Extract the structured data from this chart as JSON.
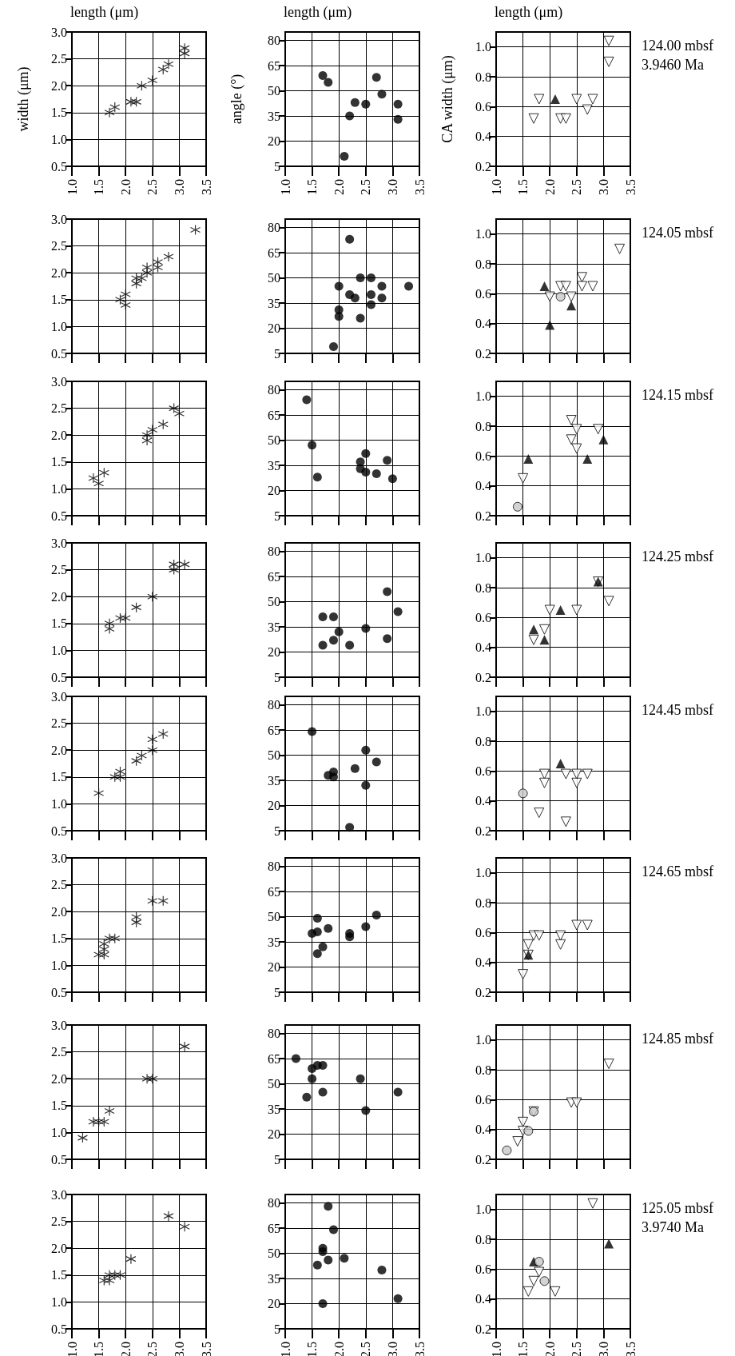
{
  "chart_data": [
    {
      "type": "scatter",
      "xlabel": "length (μm)",
      "ylabel": "width (μm)",
      "color": "#000000",
      "marker": "cross",
      "x": [
        1.7,
        1.8,
        2.1,
        2.2,
        2.3,
        2.5,
        2.7,
        2.8,
        3.1,
        3.1
      ],
      "values": [
        1.5,
        1.6,
        1.7,
        1.7,
        2.0,
        2.1,
        2.3,
        2.4,
        2.7,
        2.6
      ],
      "xlim": [
        1,
        3.5
      ],
      "xticks": [
        {
          "value": 1,
          "label": "1.0"
        },
        {
          "value": 1.5,
          "label": "1.5"
        },
        {
          "value": 2,
          "label": "2.0"
        },
        {
          "value": 2.5,
          "label": "2.5"
        },
        {
          "value": 3,
          "label": "3.0"
        },
        {
          "value": 3.5,
          "label": "3.5"
        }
      ],
      "ylim": [
        0.5,
        3
      ],
      "yticks": [
        {
          "value": 0.5,
          "label": "0.5"
        },
        {
          "value": 1,
          "label": "1.0"
        },
        {
          "value": 1.5,
          "label": "1.5"
        },
        {
          "value": 2,
          "label": "2.0"
        },
        {
          "value": 2.5,
          "label": "2.5"
        },
        {
          "value": 3,
          "label": "3.0"
        }
      ],
      "grid": true
    },
    {
      "type": "scatter",
      "xlabel": "length (μm)",
      "ylabel": "angle (°)",
      "color": "#000000",
      "marker": "circle",
      "x": [
        1.7,
        1.8,
        2.3,
        2.2,
        2.5,
        2.7,
        2.8,
        3.1,
        3.1,
        2.1
      ],
      "values": [
        59,
        55,
        43,
        35,
        42,
        58,
        48,
        42,
        33,
        11
      ],
      "xlim": [
        1,
        3.5
      ],
      "xticks": [
        {
          "value": 1,
          "label": "1.0"
        },
        {
          "value": 1.5,
          "label": "1.5"
        },
        {
          "value": 2,
          "label": "2.0"
        },
        {
          "value": 2.5,
          "label": "2.5"
        },
        {
          "value": 3,
          "label": "3.0"
        },
        {
          "value": 3.5,
          "label": "3.5"
        }
      ],
      "ylim": [
        5,
        85
      ],
      "yticks": [
        5,
        20,
        35,
        50,
        65,
        80
      ],
      "grid": true
    },
    {
      "type": "scatter",
      "xlabel": "length (μm)",
      "ylabel": "CA width (μm)",
      "annotations": [
        "124.00 mbsf",
        "3.9460 Ma"
      ],
      "series": [
        {
          "color": "#ffffff",
          "marker": "triangle-down",
          "x": [
            1.7,
            1.8,
            2.2,
            2.3,
            2.5,
            2.7,
            2.8,
            3.1,
            3.1
          ],
          "values": [
            0.52,
            0.65,
            0.52,
            0.52,
            0.65,
            0.58,
            0.65,
            1.04,
            0.9
          ]
        },
        {
          "color": "#000000",
          "marker": "triangle",
          "x": [
            2.1
          ],
          "values": [
            0.65
          ]
        }
      ],
      "xlim": [
        1,
        3.5
      ],
      "xticks": [
        {
          "value": 1,
          "label": "1.0"
        },
        {
          "value": 1.5,
          "label": "1.5"
        },
        {
          "value": 2,
          "label": "2.0"
        },
        {
          "value": 2.5,
          "label": "2.5"
        },
        {
          "value": 3,
          "label": "3.0"
        },
        {
          "value": 3.5,
          "label": "3.5"
        }
      ],
      "ylim": [
        0.2,
        1.1
      ],
      "yticks": [
        {
          "value": 0.2,
          "label": "0.2"
        },
        {
          "value": 0.4,
          "label": "0.4"
        },
        {
          "value": 0.6,
          "label": "0.6"
        },
        {
          "value": 0.8,
          "label": "0.8"
        },
        {
          "value": 1,
          "label": "1.0"
        }
      ],
      "grid": true
    },
    {
      "type": "scatter",
      "color": "#000000",
      "marker": "cross",
      "x": [
        1.9,
        2.0,
        2.0,
        2.2,
        2.2,
        2.3,
        2.4,
        2.4,
        2.6,
        2.6,
        2.8,
        3.3
      ],
      "values": [
        1.5,
        1.6,
        1.4,
        1.9,
        1.8,
        1.9,
        2.1,
        2.0,
        2.2,
        2.1,
        2.3,
        2.8
      ],
      "xlim": [
        1,
        3.5
      ],
      "xticks": [
        1,
        1.5,
        2,
        2.5,
        3,
        3.5
      ],
      "ylim": [
        0.5,
        3
      ],
      "yticks": [
        {
          "value": 0.5,
          "label": "0.5"
        },
        {
          "value": 1,
          "label": "1.0"
        },
        {
          "value": 1.5,
          "label": "1.5"
        },
        {
          "value": 2,
          "label": "2.0"
        },
        {
          "value": 2.5,
          "label": "2.5"
        },
        {
          "value": 3,
          "label": "3.0"
        }
      ],
      "grid": true,
      "tick_labels": "y"
    },
    {
      "type": "scatter",
      "color": "#000000",
      "marker": "circle",
      "x": [
        1.9,
        2.0,
        2.0,
        2.0,
        2.2,
        2.2,
        2.3,
        2.4,
        2.4,
        2.6,
        2.6,
        2.6,
        2.8,
        2.8,
        3.3
      ],
      "values": [
        9,
        45,
        31,
        27,
        73,
        40,
        38,
        50,
        26,
        50,
        40,
        34,
        45,
        38,
        45
      ],
      "xlim": [
        1,
        3.5
      ],
      "xticks": [
        1,
        1.5,
        2,
        2.5,
        3,
        3.5
      ],
      "ylim": [
        5,
        85
      ],
      "yticks": [
        5,
        20,
        35,
        50,
        65,
        80
      ],
      "grid": true,
      "tick_labels": "y"
    },
    {
      "type": "scatter",
      "annotations": [
        "124.05 mbsf"
      ],
      "series": [
        {
          "color": "#ffffff",
          "marker": "triangle-down",
          "x": [
            2.0,
            2.2,
            2.3,
            2.4,
            2.6,
            2.6,
            2.8,
            3.3
          ],
          "values": [
            0.58,
            0.65,
            0.65,
            0.58,
            0.71,
            0.65,
            0.65,
            0.9
          ]
        },
        {
          "color": "#000000",
          "marker": "triangle",
          "x": [
            1.9,
            2.0,
            2.4
          ],
          "values": [
            0.65,
            0.39,
            0.52
          ]
        },
        {
          "color": "#c8c8c8",
          "marker": "circle",
          "x": [
            2.2
          ],
          "values": [
            0.58
          ]
        }
      ],
      "xlim": [
        1,
        3.5
      ],
      "xticks": [
        1,
        1.5,
        2,
        2.5,
        3,
        3.5
      ],
      "ylim": [
        0.2,
        1.1
      ],
      "yticks": [
        {
          "value": 0.2,
          "label": "0.2"
        },
        {
          "value": 0.4,
          "label": "0.4"
        },
        {
          "value": 0.6,
          "label": "0.6"
        },
        {
          "value": 0.8,
          "label": "0.8"
        },
        {
          "value": 1,
          "label": "1.0"
        }
      ],
      "grid": true,
      "tick_labels": "y"
    },
    {
      "type": "scatter",
      "color": "#000000",
      "marker": "cross",
      "x": [
        1.4,
        1.5,
        1.6,
        2.4,
        2.4,
        2.5,
        2.7,
        2.9,
        3.0
      ],
      "values": [
        1.2,
        1.1,
        1.3,
        2.0,
        1.9,
        2.1,
        2.2,
        2.5,
        2.4
      ],
      "xlim": [
        1,
        3.5
      ],
      "xticks": [
        1,
        1.5,
        2,
        2.5,
        3,
        3.5
      ],
      "ylim": [
        0.5,
        3
      ],
      "yticks": [
        {
          "value": 0.5,
          "label": "0.5"
        },
        {
          "value": 1,
          "label": "1.0"
        },
        {
          "value": 1.5,
          "label": "1.5"
        },
        {
          "value": 2,
          "label": "2.0"
        },
        {
          "value": 2.5,
          "label": "2.5"
        },
        {
          "value": 3,
          "label": "3.0"
        }
      ],
      "grid": true,
      "tick_labels": "y"
    },
    {
      "type": "scatter",
      "color": "#000000",
      "marker": "circle",
      "x": [
        1.4,
        1.5,
        1.6,
        2.4,
        2.4,
        2.5,
        2.5,
        2.7,
        2.9,
        3.0
      ],
      "values": [
        74,
        47,
        28,
        37,
        33,
        42,
        31,
        30,
        38,
        27
      ],
      "xlim": [
        1,
        3.5
      ],
      "xticks": [
        1,
        1.5,
        2,
        2.5,
        3,
        3.5
      ],
      "ylim": [
        5,
        85
      ],
      "yticks": [
        5,
        20,
        35,
        50,
        65,
        80
      ],
      "grid": true,
      "tick_labels": "y"
    },
    {
      "type": "scatter",
      "annotations": [
        "124.15 mbsf"
      ],
      "series": [
        {
          "color": "#ffffff",
          "marker": "triangle-down",
          "x": [
            1.5,
            2.4,
            2.5,
            2.4,
            2.5,
            2.9
          ],
          "values": [
            0.45,
            0.84,
            0.78,
            0.71,
            0.65,
            0.78
          ]
        },
        {
          "color": "#000000",
          "marker": "triangle",
          "x": [
            1.6,
            2.7,
            3.0
          ],
          "values": [
            0.58,
            0.58,
            0.71
          ]
        },
        {
          "color": "#c8c8c8",
          "marker": "circle",
          "x": [
            1.4
          ],
          "values": [
            0.26
          ]
        }
      ],
      "xlim": [
        1,
        3.5
      ],
      "xticks": [
        1,
        1.5,
        2,
        2.5,
        3,
        3.5
      ],
      "ylim": [
        0.2,
        1.1
      ],
      "yticks": [
        {
          "value": 0.2,
          "label": "0.2"
        },
        {
          "value": 0.4,
          "label": "0.4"
        },
        {
          "value": 0.6,
          "label": "0.6"
        },
        {
          "value": 0.8,
          "label": "0.8"
        },
        {
          "value": 1,
          "label": "1.0"
        }
      ],
      "grid": true,
      "tick_labels": "y"
    },
    {
      "type": "scatter",
      "color": "#000000",
      "marker": "cross",
      "x": [
        1.7,
        1.7,
        1.9,
        2.0,
        2.2,
        2.5,
        2.9,
        2.9,
        3.1
      ],
      "values": [
        1.5,
        1.4,
        1.6,
        1.6,
        1.8,
        2.0,
        2.6,
        2.5,
        2.6
      ],
      "xlim": [
        1,
        3.5
      ],
      "xticks": [
        1,
        1.5,
        2,
        2.5,
        3,
        3.5
      ],
      "ylim": [
        0.5,
        3
      ],
      "yticks": [
        {
          "value": 0.5,
          "label": "0.5"
        },
        {
          "value": 1,
          "label": "1.0"
        },
        {
          "value": 1.5,
          "label": "1.5"
        },
        {
          "value": 2,
          "label": "2.0"
        },
        {
          "value": 2.5,
          "label": "2.5"
        },
        {
          "value": 3,
          "label": "3.0"
        }
      ],
      "grid": true,
      "tick_labels": "y"
    },
    {
      "type": "scatter",
      "color": "#000000",
      "marker": "circle",
      "x": [
        1.7,
        1.9,
        1.7,
        1.9,
        2.0,
        2.2,
        2.5,
        2.9,
        3.1,
        2.9
      ],
      "values": [
        41,
        41,
        24,
        27,
        32,
        24,
        34,
        56,
        44,
        28
      ],
      "xlim": [
        1,
        3.5
      ],
      "xticks": [
        1,
        1.5,
        2,
        2.5,
        3,
        3.5
      ],
      "ylim": [
        5,
        85
      ],
      "yticks": [
        5,
        20,
        35,
        50,
        65,
        80
      ],
      "grid": true,
      "tick_labels": "y"
    },
    {
      "type": "scatter",
      "annotations": [
        "124.25 mbsf"
      ],
      "series": [
        {
          "color": "#ffffff",
          "marker": "triangle-down",
          "x": [
            1.7,
            1.9,
            2.0,
            2.5,
            2.9,
            3.1
          ],
          "values": [
            0.45,
            0.52,
            0.65,
            0.65,
            0.84,
            0.71
          ]
        },
        {
          "color": "#000000",
          "marker": "triangle",
          "x": [
            1.7,
            1.9,
            2.2,
            2.9
          ],
          "values": [
            0.52,
            0.45,
            0.65,
            0.84
          ]
        }
      ],
      "xlim": [
        1,
        3.5
      ],
      "xticks": [
        1,
        1.5,
        2,
        2.5,
        3,
        3.5
      ],
      "ylim": [
        0.2,
        1.1
      ],
      "yticks": [
        {
          "value": 0.2,
          "label": "0.2"
        },
        {
          "value": 0.4,
          "label": "0.4"
        },
        {
          "value": 0.6,
          "label": "0.6"
        },
        {
          "value": 0.8,
          "label": "0.8"
        },
        {
          "value": 1,
          "label": "1.0"
        }
      ],
      "grid": true,
      "tick_labels": "y"
    },
    {
      "type": "scatter",
      "color": "#000000",
      "marker": "cross",
      "x": [
        1.5,
        1.8,
        1.9,
        1.9,
        2.2,
        2.3,
        2.5,
        2.5,
        2.7
      ],
      "values": [
        1.2,
        1.5,
        1.6,
        1.5,
        1.8,
        1.9,
        2.2,
        2.0,
        2.3
      ],
      "xlim": [
        1,
        3.5
      ],
      "xticks": [
        1,
        1.5,
        2,
        2.5,
        3,
        3.5
      ],
      "ylim": [
        0.5,
        3
      ],
      "yticks": [
        {
          "value": 0.5,
          "label": "0.5"
        },
        {
          "value": 1,
          "label": "1.0"
        },
        {
          "value": 1.5,
          "label": "1.5"
        },
        {
          "value": 2,
          "label": "2.0"
        },
        {
          "value": 2.5,
          "label": "2.5"
        },
        {
          "value": 3,
          "label": "3.0"
        }
      ],
      "grid": true,
      "tick_labels": "y"
    },
    {
      "type": "scatter",
      "color": "#000000",
      "marker": "circle",
      "x": [
        1.5,
        1.8,
        1.9,
        1.9,
        2.3,
        2.5,
        2.5,
        2.7,
        2.2
      ],
      "values": [
        64,
        38,
        40,
        37,
        42,
        53,
        32,
        46,
        7
      ],
      "xlim": [
        1,
        3.5
      ],
      "xticks": [
        1,
        1.5,
        2,
        2.5,
        3,
        3.5
      ],
      "ylim": [
        5,
        85
      ],
      "yticks": [
        5,
        20,
        35,
        50,
        65,
        80
      ],
      "grid": true,
      "tick_labels": "y"
    },
    {
      "type": "scatter",
      "annotations": [
        "124.45 mbsf"
      ],
      "series": [
        {
          "color": "#ffffff",
          "marker": "triangle-down",
          "x": [
            1.9,
            1.9,
            2.3,
            2.5,
            2.5,
            2.7,
            1.8,
            2.3
          ],
          "values": [
            0.58,
            0.52,
            0.58,
            0.58,
            0.52,
            0.58,
            0.32,
            0.26
          ]
        },
        {
          "color": "#000000",
          "marker": "triangle",
          "x": [
            2.2
          ],
          "values": [
            0.65
          ]
        },
        {
          "color": "#c8c8c8",
          "marker": "circle",
          "x": [
            1.5
          ],
          "values": [
            0.45
          ]
        }
      ],
      "xlim": [
        1,
        3.5
      ],
      "xticks": [
        1,
        1.5,
        2,
        2.5,
        3,
        3.5
      ],
      "ylim": [
        0.2,
        1.1
      ],
      "yticks": [
        {
          "value": 0.2,
          "label": "0.2"
        },
        {
          "value": 0.4,
          "label": "0.4"
        },
        {
          "value": 0.6,
          "label": "0.6"
        },
        {
          "value": 0.8,
          "label": "0.8"
        },
        {
          "value": 1,
          "label": "1.0"
        }
      ],
      "grid": true,
      "tick_labels": "y"
    },
    {
      "type": "scatter",
      "color": "#000000",
      "marker": "cross",
      "x": [
        1.5,
        1.6,
        1.6,
        1.6,
        1.7,
        1.8,
        2.2,
        2.2,
        2.5,
        2.7
      ],
      "values": [
        1.2,
        1.4,
        1.3,
        1.2,
        1.5,
        1.5,
        1.9,
        1.8,
        2.2,
        2.2
      ],
      "xlim": [
        1,
        3.5
      ],
      "xticks": [
        1,
        1.5,
        2,
        2.5,
        3,
        3.5
      ],
      "ylim": [
        0.5,
        3
      ],
      "yticks": [
        {
          "value": 0.5,
          "label": "0.5"
        },
        {
          "value": 1,
          "label": "1.0"
        },
        {
          "value": 1.5,
          "label": "1.5"
        },
        {
          "value": 2,
          "label": "2.0"
        },
        {
          "value": 2.5,
          "label": "2.5"
        },
        {
          "value": 3,
          "label": "3.0"
        }
      ],
      "grid": true,
      "tick_labels": "y"
    },
    {
      "type": "scatter",
      "color": "#000000",
      "marker": "circle",
      "x": [
        1.5,
        1.6,
        1.6,
        1.6,
        1.7,
        1.8,
        2.2,
        2.2,
        2.5,
        2.7
      ],
      "values": [
        40,
        41,
        49,
        28,
        32,
        43,
        40,
        38,
        44,
        51
      ],
      "xlim": [
        1,
        3.5
      ],
      "xticks": [
        1,
        1.5,
        2,
        2.5,
        3,
        3.5
      ],
      "ylim": [
        5,
        85
      ],
      "yticks": [
        5,
        20,
        35,
        50,
        65,
        80
      ],
      "grid": true,
      "tick_labels": "y"
    },
    {
      "type": "scatter",
      "annotations": [
        "124.65 mbsf"
      ],
      "series": [
        {
          "color": "#ffffff",
          "marker": "triangle-down",
          "x": [
            1.5,
            1.6,
            1.7,
            1.8,
            2.2,
            2.2,
            2.5,
            2.7,
            1.6
          ],
          "values": [
            0.32,
            0.52,
            0.58,
            0.58,
            0.58,
            0.52,
            0.65,
            0.65,
            0.45
          ]
        },
        {
          "color": "#000000",
          "marker": "triangle",
          "x": [
            1.6
          ],
          "values": [
            0.45
          ]
        }
      ],
      "xlim": [
        1,
        3.5
      ],
      "xticks": [
        1,
        1.5,
        2,
        2.5,
        3,
        3.5
      ],
      "ylim": [
        0.2,
        1.1
      ],
      "yticks": [
        {
          "value": 0.2,
          "label": "0.2"
        },
        {
          "value": 0.4,
          "label": "0.4"
        },
        {
          "value": 0.6,
          "label": "0.6"
        },
        {
          "value": 0.8,
          "label": "0.8"
        },
        {
          "value": 1,
          "label": "1.0"
        }
      ],
      "grid": true,
      "tick_labels": "y"
    },
    {
      "type": "scatter",
      "color": "#000000",
      "marker": "cross",
      "x": [
        1.2,
        1.4,
        1.5,
        1.6,
        1.7,
        2.4,
        2.5,
        3.1
      ],
      "values": [
        0.9,
        1.2,
        1.2,
        1.2,
        1.4,
        2.0,
        2.0,
        2.6
      ],
      "xlim": [
        1,
        3.5
      ],
      "xticks": [
        1,
        1.5,
        2,
        2.5,
        3,
        3.5
      ],
      "ylim": [
        0.5,
        3
      ],
      "yticks": [
        {
          "value": 0.5,
          "label": "0.5"
        },
        {
          "value": 1,
          "label": "1.0"
        },
        {
          "value": 1.5,
          "label": "1.5"
        },
        {
          "value": 2,
          "label": "2.0"
        },
        {
          "value": 2.5,
          "label": "2.5"
        },
        {
          "value": 3,
          "label": "3.0"
        }
      ],
      "grid": true,
      "tick_labels": "y"
    },
    {
      "type": "scatter",
      "color": "#000000",
      "marker": "circle",
      "x": [
        1.2,
        1.5,
        1.6,
        1.7,
        1.5,
        1.4,
        1.7,
        2.4,
        2.5,
        3.1
      ],
      "values": [
        65,
        59,
        61,
        61,
        53,
        42,
        45,
        53,
        34,
        45
      ],
      "xlim": [
        1,
        3.5
      ],
      "xticks": [
        1,
        1.5,
        2,
        2.5,
        3,
        3.5
      ],
      "ylim": [
        5,
        85
      ],
      "yticks": [
        5,
        20,
        35,
        50,
        65,
        80
      ],
      "grid": true,
      "tick_labels": "y"
    },
    {
      "type": "scatter",
      "annotations": [
        "124.85 mbsf"
      ],
      "series": [
        {
          "color": "#ffffff",
          "marker": "triangle-down",
          "x": [
            1.4,
            1.5,
            1.5,
            1.7,
            2.4,
            2.5,
            3.1
          ],
          "values": [
            0.32,
            0.45,
            0.39,
            0.52,
            0.58,
            0.58,
            0.84
          ]
        },
        {
          "color": "#c8c8c8",
          "marker": "circle",
          "x": [
            1.2,
            1.6,
            1.7
          ],
          "values": [
            0.26,
            0.39,
            0.52
          ]
        }
      ],
      "xlim": [
        1,
        3.5
      ],
      "xticks": [
        1,
        1.5,
        2,
        2.5,
        3,
        3.5
      ],
      "ylim": [
        0.2,
        1.1
      ],
      "yticks": [
        {
          "value": 0.2,
          "label": "0.2"
        },
        {
          "value": 0.4,
          "label": "0.4"
        },
        {
          "value": 0.6,
          "label": "0.6"
        },
        {
          "value": 0.8,
          "label": "0.8"
        },
        {
          "value": 1,
          "label": "1.0"
        }
      ],
      "grid": true,
      "tick_labels": "y"
    },
    {
      "type": "scatter",
      "color": "#000000",
      "marker": "cross",
      "x": [
        1.6,
        1.7,
        1.7,
        1.8,
        1.9,
        2.1,
        2.8,
        3.1
      ],
      "values": [
        1.4,
        1.4,
        1.5,
        1.5,
        1.5,
        1.8,
        2.6,
        2.4
      ],
      "xlim": [
        1,
        3.5
      ],
      "xticks": [
        {
          "value": 1,
          "label": "1.0"
        },
        {
          "value": 1.5,
          "label": "1.5"
        },
        {
          "value": 2,
          "label": "2.0"
        },
        {
          "value": 2.5,
          "label": "2.5"
        },
        {
          "value": 3,
          "label": "3.0"
        },
        {
          "value": 3.5,
          "label": "3.5"
        }
      ],
      "ylim": [
        0.5,
        3
      ],
      "yticks": [
        {
          "value": 0.5,
          "label": "0.5"
        },
        {
          "value": 1,
          "label": "1.0"
        },
        {
          "value": 1.5,
          "label": "1.5"
        },
        {
          "value": 2,
          "label": "2.0"
        },
        {
          "value": 2.5,
          "label": "2.5"
        },
        {
          "value": 3,
          "label": "3.0"
        }
      ],
      "grid": true
    },
    {
      "type": "scatter",
      "color": "#000000",
      "marker": "circle",
      "x": [
        1.8,
        1.9,
        1.7,
        1.7,
        1.6,
        1.8,
        2.1,
        2.8,
        1.7,
        3.1
      ],
      "values": [
        78,
        64,
        53,
        51,
        43,
        46,
        47,
        40,
        20,
        23
      ],
      "xlim": [
        1,
        3.5
      ],
      "xticks": [
        {
          "value": 1,
          "label": "1.0"
        },
        {
          "value": 1.5,
          "label": "1.5"
        },
        {
          "value": 2,
          "label": "2.0"
        },
        {
          "value": 2.5,
          "label": "2.5"
        },
        {
          "value": 3,
          "label": "3.0"
        },
        {
          "value": 3.5,
          "label": "3.5"
        }
      ],
      "ylim": [
        5,
        85
      ],
      "yticks": [
        5,
        20,
        35,
        50,
        65,
        80
      ],
      "grid": true
    },
    {
      "type": "scatter",
      "annotations": [
        "125.05 mbsf",
        "3.9740 Ma"
      ],
      "series": [
        {
          "color": "#ffffff",
          "marker": "triangle-down",
          "x": [
            2.8,
            1.6,
            1.7,
            1.8,
            2.1
          ],
          "values": [
            1.04,
            0.45,
            0.52,
            0.58,
            0.45
          ]
        },
        {
          "color": "#000000",
          "marker": "triangle",
          "x": [
            1.7,
            3.1
          ],
          "values": [
            0.65,
            0.77
          ]
        },
        {
          "color": "#c8c8c8",
          "marker": "circle",
          "x": [
            1.8,
            1.9
          ],
          "values": [
            0.65,
            0.52
          ]
        }
      ],
      "xlim": [
        1,
        3.5
      ],
      "xticks": [
        {
          "value": 1,
          "label": "1.0"
        },
        {
          "value": 1.5,
          "label": "1.5"
        },
        {
          "value": 2,
          "label": "2.0"
        },
        {
          "value": 2.5,
          "label": "2.5"
        },
        {
          "value": 3,
          "label": "3.0"
        },
        {
          "value": 3.5,
          "label": "3.5"
        }
      ],
      "ylim": [
        0.2,
        1.1
      ],
      "yticks": [
        {
          "value": 0.2,
          "label": "0.2"
        },
        {
          "value": 0.4,
          "label": "0.4"
        },
        {
          "value": 0.6,
          "label": "0.6"
        },
        {
          "value": 0.8,
          "label": "0.8"
        },
        {
          "value": 1,
          "label": "1.0"
        }
      ],
      "grid": true
    }
  ]
}
